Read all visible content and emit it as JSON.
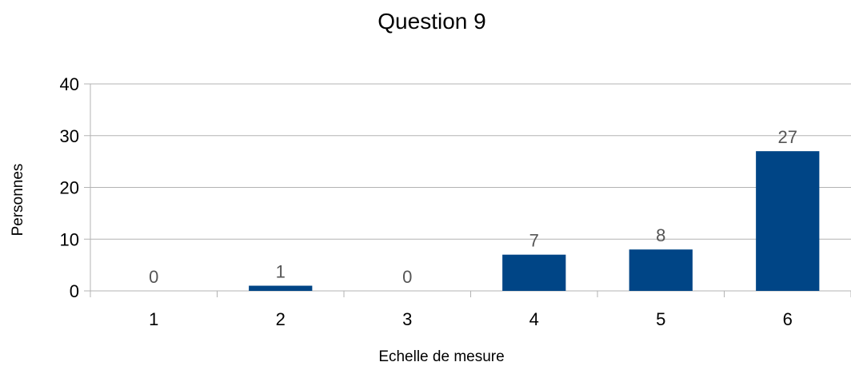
{
  "chart_data": {
    "type": "bar",
    "title": "Question 9",
    "xlabel": "Echelle de mesure",
    "ylabel": "Personnes",
    "categories": [
      "1",
      "2",
      "3",
      "4",
      "5",
      "6"
    ],
    "values": [
      0,
      1,
      0,
      7,
      8,
      27
    ],
    "data_labels": [
      "0",
      "1",
      "0",
      "7",
      "8",
      "27"
    ],
    "ylim": [
      0,
      40
    ],
    "yticks": [
      "0",
      "10",
      "20",
      "30",
      "40"
    ],
    "grid": true,
    "legend": "none",
    "bar_color": "#004586",
    "grid_color": "#b3b3b3"
  }
}
